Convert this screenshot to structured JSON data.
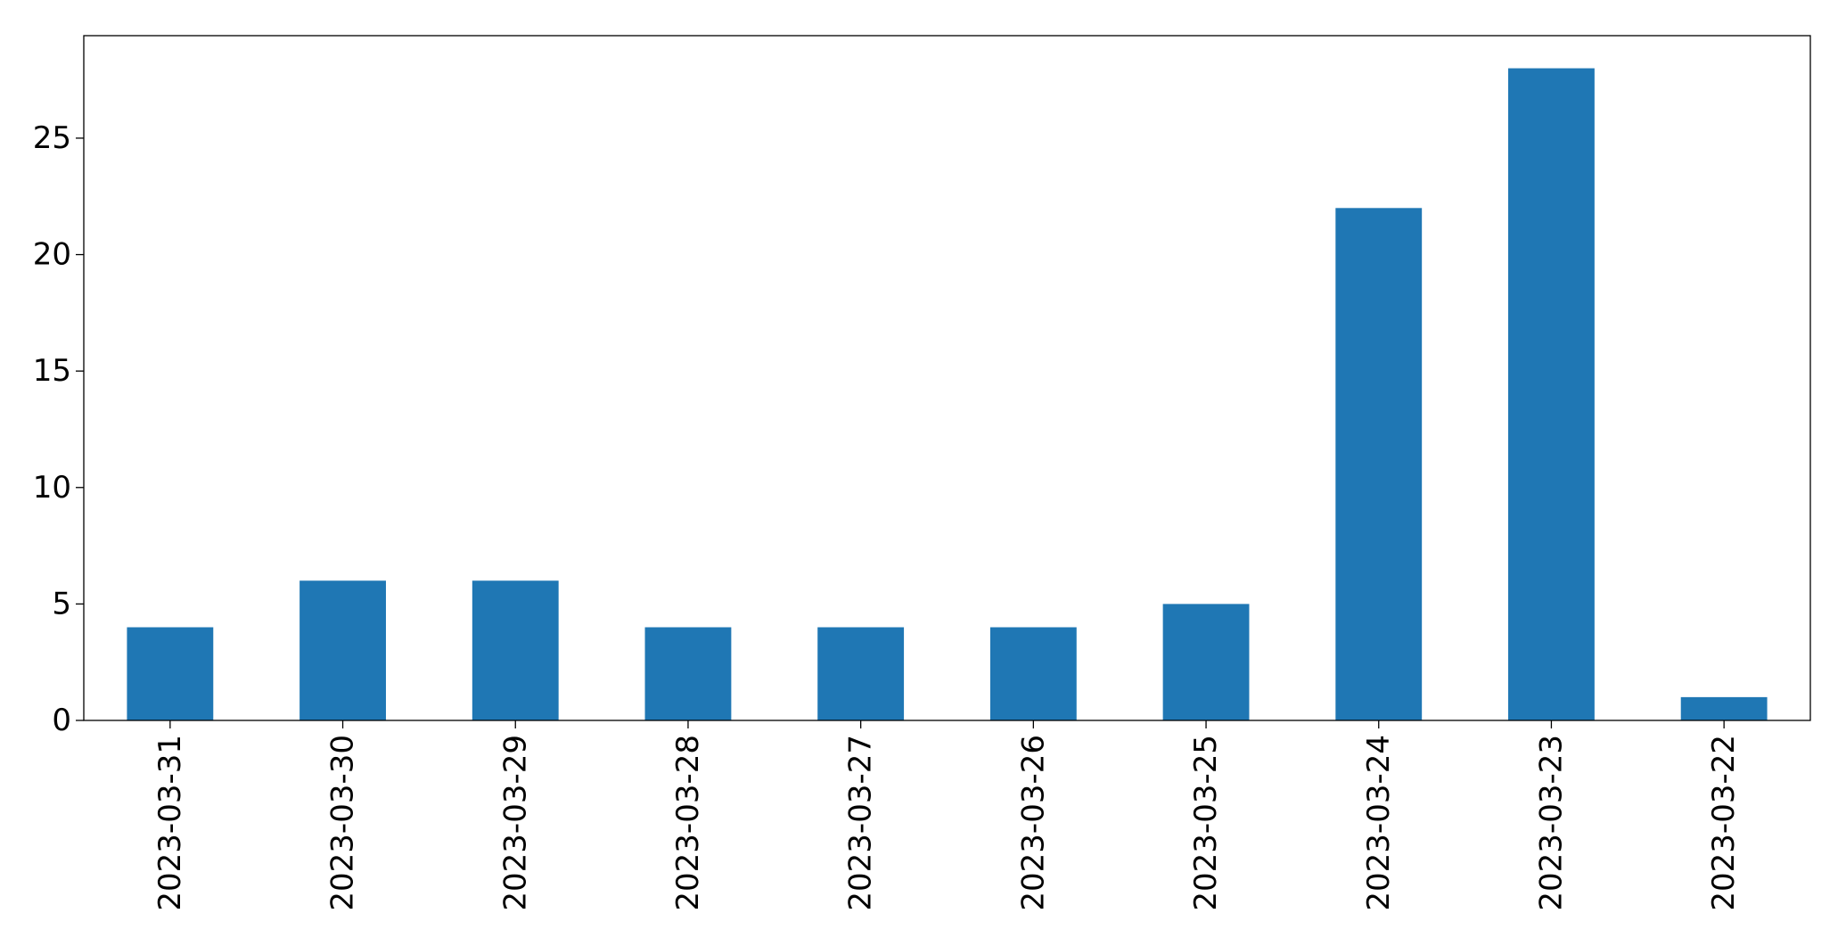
{
  "chart_data": {
    "type": "bar",
    "categories": [
      "2023-03-31",
      "2023-03-30",
      "2023-03-29",
      "2023-03-28",
      "2023-03-27",
      "2023-03-26",
      "2023-03-25",
      "2023-03-24",
      "2023-03-23",
      "2023-03-22"
    ],
    "values": [
      4,
      6,
      6,
      4,
      4,
      4,
      5,
      22,
      28,
      1
    ],
    "color": "#1f77b4",
    "ylim": [
      0,
      29.4
    ],
    "yticks": [
      0,
      5,
      10,
      15,
      20,
      25
    ],
    "grid": false
  }
}
